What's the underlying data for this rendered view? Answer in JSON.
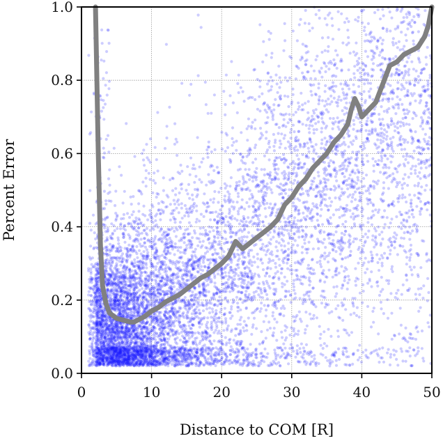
{
  "chart_data": {
    "type": "scatter",
    "title": "",
    "xlabel": "Distance to COM [R]",
    "ylabel": "Percent Error",
    "xlim": [
      0,
      50
    ],
    "ylim": [
      0,
      1
    ],
    "xticks": [
      "0",
      "10",
      "20",
      "30",
      "40",
      "50"
    ],
    "yticks": [
      "0.0",
      "0.2",
      "0.4",
      "0.6",
      "0.8",
      "1.0"
    ],
    "grid": true,
    "legend": "none",
    "colors": {
      "scatter": "#1a1aff",
      "trend": "#808080",
      "grid": "#9a9a9a",
      "axis": "#000000"
    },
    "series": [
      {
        "kind": "scatter-cloud",
        "approx_points": 9000,
        "x_range": [
          1,
          50
        ],
        "density_profile": [
          {
            "x": 2,
            "typical_y": 0.15,
            "spread": [
              0.05,
              1.0
            ]
          },
          {
            "x": 5,
            "typical_y": 0.12,
            "spread": [
              0.03,
              0.35
            ]
          },
          {
            "x": 10,
            "typical_y": 0.14,
            "spread": [
              0.03,
              0.45
            ]
          },
          {
            "x": 20,
            "typical_y": 0.25,
            "spread": [
              0.03,
              0.85
            ]
          },
          {
            "x": 30,
            "typical_y": 0.45,
            "spread": [
              0.05,
              1.0
            ]
          },
          {
            "x": 40,
            "typical_y": 0.6,
            "spread": [
              0.05,
              1.0
            ]
          },
          {
            "x": 50,
            "typical_y": 0.7,
            "spread": [
              0.05,
              1.0
            ]
          }
        ]
      },
      {
        "kind": "moving-median",
        "x": [
          2.0,
          2.4,
          2.7,
          3.0,
          3.5,
          4.0,
          5.0,
          6.0,
          7.0,
          7.5,
          8.0,
          9.0,
          10.0,
          11.0,
          12.0,
          13.0,
          14.0,
          15.0,
          16.0,
          17.0,
          18.0,
          19.0,
          20.0,
          21.0,
          22.0,
          22.5,
          23.0,
          24.0,
          25.0,
          26.0,
          27.0,
          28.0,
          29.0,
          30.0,
          31.0,
          32.0,
          33.0,
          34.0,
          35.0,
          36.0,
          37.0,
          38.0,
          38.5,
          39.0,
          39.5,
          40.0,
          41.0,
          42.0,
          43.0,
          44.0,
          45.0,
          46.0,
          47.0,
          48.0,
          49.0,
          49.5,
          50.0
        ],
        "y": [
          1.0,
          0.6,
          0.35,
          0.24,
          0.19,
          0.165,
          0.15,
          0.145,
          0.14,
          0.14,
          0.145,
          0.155,
          0.17,
          0.18,
          0.195,
          0.205,
          0.215,
          0.23,
          0.245,
          0.26,
          0.27,
          0.285,
          0.3,
          0.32,
          0.36,
          0.35,
          0.34,
          0.355,
          0.37,
          0.385,
          0.4,
          0.42,
          0.46,
          0.48,
          0.51,
          0.53,
          0.56,
          0.58,
          0.6,
          0.63,
          0.65,
          0.68,
          0.72,
          0.75,
          0.73,
          0.7,
          0.72,
          0.74,
          0.79,
          0.84,
          0.85,
          0.87,
          0.88,
          0.89,
          0.92,
          0.95,
          1.0
        ]
      }
    ]
  }
}
